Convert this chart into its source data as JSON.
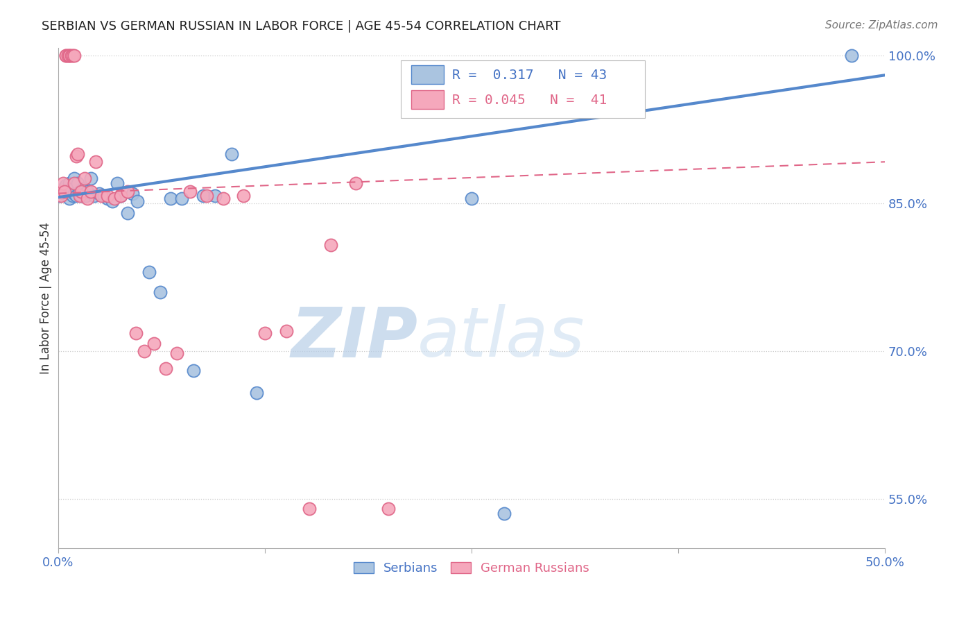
{
  "title": "SERBIAN VS GERMAN RUSSIAN IN LABOR FORCE | AGE 45-54 CORRELATION CHART",
  "source": "Source: ZipAtlas.com",
  "ylabel": "In Labor Force | Age 45-54",
  "xlim": [
    0.0,
    0.5
  ],
  "ylim": [
    0.5,
    1.008
  ],
  "xticks": [
    0.0,
    0.125,
    0.25,
    0.375,
    0.5
  ],
  "xtick_labels": [
    "0.0%",
    "",
    "",
    "",
    "50.0%"
  ],
  "grid_yticks": [
    0.55,
    0.7,
    0.85,
    1.0
  ],
  "right_ytick_positions": [
    0.55,
    0.7,
    0.85,
    1.0
  ],
  "right_ytick_labels": [
    "55.0%",
    "70.0%",
    "85.0%",
    "100.0%"
  ],
  "legend_r_serbian": "0.317",
  "legend_n_serbian": "43",
  "legend_r_german": "0.045",
  "legend_n_german": "41",
  "serbian_color": "#aac4e0",
  "german_color": "#f5a8bc",
  "serbian_edge": "#5588cc",
  "german_edge": "#e06688",
  "serbian_points_x": [
    0.001,
    0.002,
    0.003,
    0.004,
    0.005,
    0.006,
    0.007,
    0.007,
    0.008,
    0.009,
    0.01,
    0.01,
    0.011,
    0.012,
    0.013,
    0.014,
    0.015,
    0.016,
    0.017,
    0.018,
    0.02,
    0.022,
    0.025,
    0.028,
    0.03,
    0.033,
    0.036,
    0.038,
    0.042,
    0.045,
    0.048,
    0.055,
    0.062,
    0.068,
    0.075,
    0.082,
    0.088,
    0.095,
    0.105,
    0.12,
    0.25,
    0.27,
    0.48
  ],
  "serbian_points_y": [
    0.858,
    0.862,
    0.865,
    0.86,
    0.868,
    0.862,
    0.87,
    0.855,
    0.865,
    0.858,
    0.86,
    0.875,
    0.858,
    0.87,
    0.862,
    0.858,
    0.865,
    0.86,
    0.858,
    0.862,
    0.875,
    0.858,
    0.86,
    0.858,
    0.855,
    0.852,
    0.87,
    0.858,
    0.84,
    0.86,
    0.852,
    0.78,
    0.76,
    0.855,
    0.855,
    0.68,
    0.858,
    0.858,
    0.9,
    0.658,
    0.855,
    0.535,
    1.0
  ],
  "german_points_x": [
    0.001,
    0.002,
    0.003,
    0.004,
    0.005,
    0.005,
    0.006,
    0.007,
    0.007,
    0.008,
    0.009,
    0.01,
    0.01,
    0.011,
    0.012,
    0.013,
    0.014,
    0.016,
    0.018,
    0.02,
    0.023,
    0.026,
    0.03,
    0.034,
    0.038,
    0.042,
    0.047,
    0.052,
    0.058,
    0.065,
    0.072,
    0.08,
    0.09,
    0.1,
    0.112,
    0.125,
    0.138,
    0.152,
    0.165,
    0.18,
    0.2
  ],
  "german_points_y": [
    0.862,
    0.858,
    0.87,
    0.862,
    1.0,
    1.0,
    1.0,
    1.0,
    1.0,
    1.0,
    1.0,
    1.0,
    0.87,
    0.898,
    0.9,
    0.858,
    0.862,
    0.875,
    0.855,
    0.862,
    0.892,
    0.858,
    0.858,
    0.855,
    0.858,
    0.862,
    0.718,
    0.7,
    0.708,
    0.682,
    0.698,
    0.862,
    0.858,
    0.855,
    0.858,
    0.718,
    0.72,
    0.54,
    0.808,
    0.87,
    0.54
  ],
  "serbian_trend": [
    0.0,
    0.5,
    0.856,
    0.98
  ],
  "german_trend": [
    0.0,
    0.5,
    0.86,
    0.892
  ],
  "watermark_zip": "ZIP",
  "watermark_atlas": "atlas",
  "background_color": "#ffffff",
  "title_color": "#222222",
  "tick_label_color": "#4472c4",
  "source_color": "#777777",
  "legend_serbian_text_color": "#4472c4",
  "legend_german_text_color": "#e06688"
}
